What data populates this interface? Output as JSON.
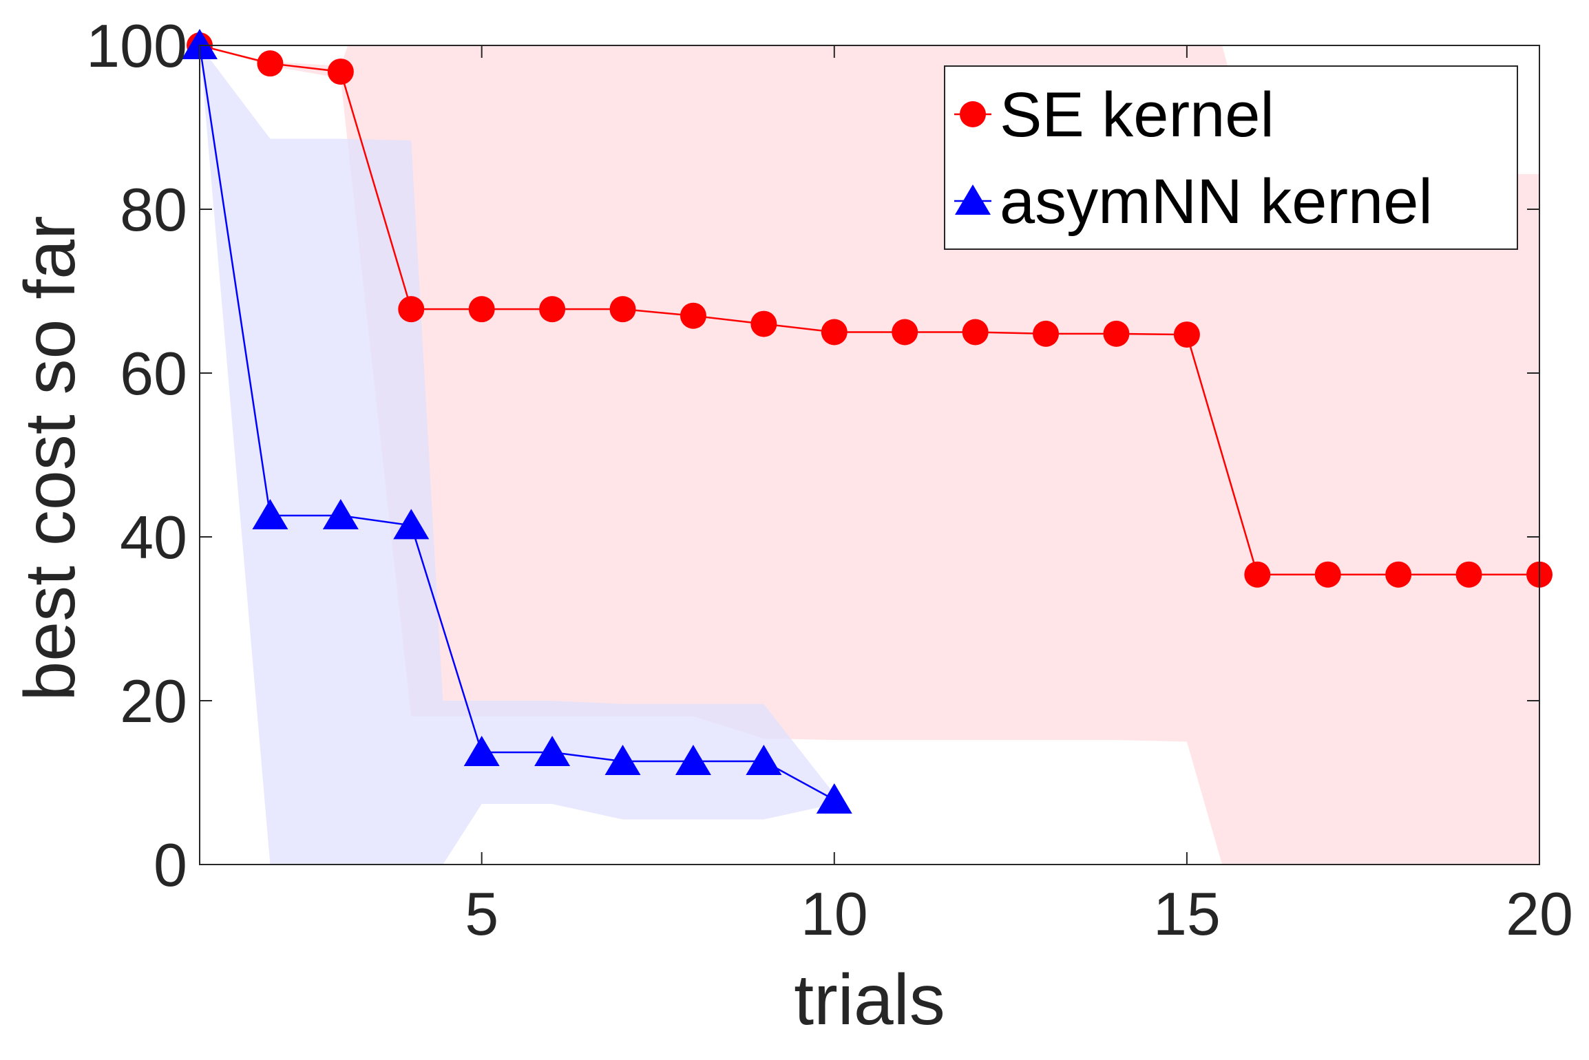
{
  "chart_data": {
    "type": "line",
    "title": "",
    "xlabel": "trials",
    "ylabel": "best cost so far",
    "xlim": [
      1,
      20
    ],
    "ylim": [
      0,
      100
    ],
    "xticks": [
      5,
      10,
      15,
      20
    ],
    "yticks": [
      0,
      20,
      40,
      60,
      80,
      100
    ],
    "grid": false,
    "legend_position": "top-right",
    "series": [
      {
        "name": "SE kernel",
        "color": "#ff0000",
        "band_color": "#ffe0e3",
        "marker": "circle",
        "x": [
          1,
          2,
          3,
          4,
          5,
          6,
          7,
          8,
          9,
          10,
          11,
          12,
          13,
          14,
          15,
          16,
          17,
          18,
          19,
          20
        ],
        "values": [
          100,
          97.8,
          96.8,
          67.8,
          67.8,
          67.8,
          67.8,
          67.0,
          66.0,
          65.0,
          65.0,
          65.0,
          64.8,
          64.8,
          64.7,
          35.4,
          35.4,
          35.4,
          35.4,
          35.4
        ],
        "band_x": [
          1,
          2,
          3,
          3.1,
          4,
          5,
          6,
          7,
          8,
          9,
          10,
          11,
          12,
          13,
          14,
          15,
          15.5,
          16,
          17,
          18,
          19,
          20
        ],
        "band_upper": [
          100,
          98,
          97.5,
          100,
          100,
          100,
          100,
          100,
          100,
          100,
          100,
          100,
          100,
          100,
          100,
          100,
          100,
          84.3,
          84.3,
          84.3,
          84.3,
          84.3
        ],
        "band_lower": [
          100,
          97.5,
          96,
          88,
          18.1,
          18.1,
          18.1,
          18.1,
          18.1,
          15.4,
          15.2,
          15.2,
          15.2,
          15.2,
          15.2,
          15.0,
          0,
          0,
          0,
          0,
          0,
          0
        ]
      },
      {
        "name": "asymNN kernel",
        "color": "#0000ff",
        "band_color": "#e0e0fd",
        "marker": "triangle",
        "x": [
          1,
          2,
          3,
          4,
          5,
          6,
          7,
          8,
          9,
          10
        ],
        "values": [
          100,
          42.6,
          42.6,
          41.4,
          13.7,
          13.7,
          12.6,
          12.6,
          12.6,
          7.9
        ],
        "band_x": [
          1,
          2,
          3,
          4,
          4.45,
          5,
          6,
          7,
          8,
          9,
          10
        ],
        "band_upper": [
          100,
          88.6,
          88.6,
          88.4,
          20,
          20,
          20,
          19.6,
          19.6,
          19.6,
          8.6
        ],
        "band_lower": [
          100,
          0,
          0,
          0,
          0,
          7.4,
          7.4,
          5.5,
          5.5,
          5.5,
          7.4
        ]
      }
    ]
  }
}
